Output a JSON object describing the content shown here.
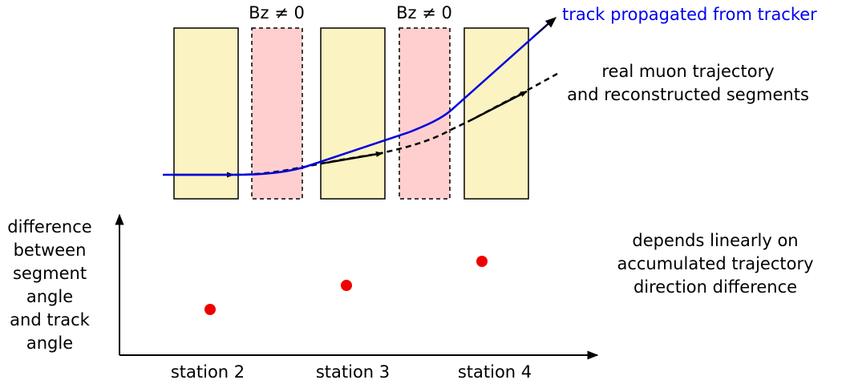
{
  "colors": {
    "station_fill": "#fcf3c2",
    "field_fill": "#ffcfcf",
    "track": "#0000dd",
    "trajectory": "#000000",
    "point": "#ee0000",
    "label_blue": "#0000ee"
  },
  "field_regions": [
    {
      "label": "Bz ≠ 0"
    },
    {
      "label": "Bz ≠ 0"
    }
  ],
  "labels": {
    "track": "track propagated from tracker",
    "real_line1": "real muon trajectory",
    "real_line2": "and reconstructed segments",
    "yaxis_lines": [
      "difference",
      "between",
      "segment",
      "angle",
      "and track",
      "angle"
    ],
    "note_lines": [
      "depends linearly on",
      "accumulated trajectory",
      "direction difference"
    ],
    "stations": [
      "station 2",
      "station 3",
      "station 4"
    ]
  }
}
